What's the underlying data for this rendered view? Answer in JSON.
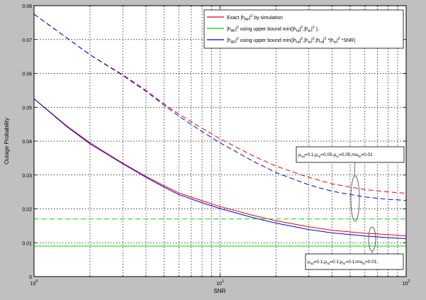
{
  "chart_data": {
    "type": "line",
    "xscale": "log",
    "xlim": [
      1,
      100
    ],
    "ylim": [
      0,
      0.08
    ],
    "xlabel": "SNR",
    "ylabel": "Outage Probability",
    "grid": true,
    "legend_position": "top-right",
    "xticks": [
      {
        "value": 1,
        "base": "10",
        "exp": "0"
      },
      {
        "value": 10,
        "base": "10",
        "exp": "1"
      },
      {
        "value": 100,
        "base": "10",
        "exp": "2"
      }
    ],
    "yticks": [
      {
        "value": 0,
        "label": "0"
      },
      {
        "value": 0.01,
        "label": "0.01"
      },
      {
        "value": 0.02,
        "label": "0.02"
      },
      {
        "value": 0.03,
        "label": "0.03"
      },
      {
        "value": 0.04,
        "label": "0.04"
      },
      {
        "value": 0.05,
        "label": "0.05"
      },
      {
        "value": 0.06,
        "label": "0.06"
      },
      {
        "value": 0.07,
        "label": "0.07"
      },
      {
        "value": 0.08,
        "label": "0.08"
      }
    ],
    "legend": [
      {
        "color": "#ee0000",
        "segs": [
          [
            "Exact |h",
            "n"
          ],
          [
            "AF",
            "sub"
          ],
          [
            "|",
            "n"
          ],
          [
            "2",
            "sup"
          ],
          [
            " by simulation",
            "n"
          ]
        ]
      },
      {
        "color": "#00dd00",
        "segs": [
          [
            "|h",
            "n"
          ],
          [
            "AF",
            "sub"
          ],
          [
            "|",
            "n"
          ],
          [
            "2",
            "sup"
          ],
          [
            " using upper bound min(|h",
            "n"
          ],
          [
            "rd",
            "sub"
          ],
          [
            "|",
            "n"
          ],
          [
            "2",
            "sup"
          ],
          [
            ",|h",
            "n"
          ],
          [
            "sr",
            "sub"
          ],
          [
            "|",
            "n"
          ],
          [
            "2",
            "sup"
          ],
          [
            " ),",
            "n"
          ]
        ]
      },
      {
        "color": "#0000ee",
        "segs": [
          [
            "|h",
            "n"
          ],
          [
            "AF",
            "sub"
          ],
          [
            "|",
            "n"
          ],
          [
            "2",
            "sup"
          ],
          [
            " using upper bound min(|h",
            "n"
          ],
          [
            "rd",
            "sub"
          ],
          [
            "|",
            "n"
          ],
          [
            "2",
            "sup"
          ],
          [
            ",|h",
            "n"
          ],
          [
            "sr",
            "sub"
          ],
          [
            "|",
            "n"
          ],
          [
            "2",
            "sup"
          ],
          [
            ",|h",
            "n"
          ],
          [
            "rd",
            "sub"
          ],
          [
            "|",
            "n"
          ],
          [
            "2",
            "sup"
          ],
          [
            " *|h",
            "n"
          ],
          [
            "sr",
            "sub"
          ],
          [
            "|",
            "n"
          ],
          [
            "2",
            "sup"
          ],
          [
            " *SNR)",
            "n"
          ]
        ]
      }
    ],
    "annotations": [
      {
        "segs": [
          [
            "μ",
            "n"
          ],
          [
            "sd",
            "sub"
          ],
          [
            "=0.1;μ",
            "n"
          ],
          [
            "rd",
            "sub"
          ],
          [
            "=0.05;μ",
            "n"
          ],
          [
            "sr",
            "sub"
          ],
          [
            "=0.05;mu",
            "n"
          ],
          [
            "th",
            "sub"
          ],
          [
            "=0.01",
            "n"
          ]
        ]
      },
      {
        "segs": [
          [
            "μ",
            "n"
          ],
          [
            "sd",
            "sub"
          ],
          [
            "=0.1;μ",
            "n"
          ],
          [
            "rd",
            "sub"
          ],
          [
            "=0.1;μ",
            "n"
          ],
          [
            "sr",
            "sub"
          ],
          [
            "=0.1;mu",
            "n"
          ],
          [
            "th",
            "sub"
          ],
          [
            "=0.01;",
            "n"
          ]
        ]
      }
    ],
    "series": [
      {
        "group": "upper",
        "style": "dashed",
        "color": "#ee0000",
        "x": [
          1,
          2,
          3,
          4,
          5,
          6,
          8,
          10,
          15,
          20,
          30,
          40,
          60,
          80,
          100
        ],
        "y": [
          0.0775,
          0.0655,
          0.0596,
          0.055,
          0.051,
          0.048,
          0.0438,
          0.0407,
          0.0357,
          0.0326,
          0.0293,
          0.0274,
          0.0257,
          0.025,
          0.0246
        ]
      },
      {
        "group": "upper",
        "style": "dashed",
        "color": "#0000ee",
        "x": [
          1,
          2,
          3,
          4,
          5,
          6,
          8,
          10,
          15,
          20,
          30,
          40,
          60,
          80,
          100
        ],
        "y": [
          0.0775,
          0.0655,
          0.0594,
          0.0547,
          0.0506,
          0.0474,
          0.0428,
          0.0395,
          0.0341,
          0.0307,
          0.0271,
          0.0252,
          0.0235,
          0.0228,
          0.0225
        ]
      },
      {
        "group": "lower",
        "style": "solid",
        "color": "#ee0000",
        "x": [
          1,
          1.5,
          2,
          3,
          4,
          5,
          6,
          8,
          10,
          15,
          20,
          30,
          40,
          60,
          80,
          100
        ],
        "y": [
          0.0525,
          0.0445,
          0.0395,
          0.0335,
          0.0296,
          0.0268,
          0.0247,
          0.0224,
          0.0207,
          0.0181,
          0.0165,
          0.0147,
          0.0137,
          0.0128,
          0.0124,
          0.012
        ]
      },
      {
        "group": "lower",
        "style": "solid",
        "color": "#0000ee",
        "x": [
          1,
          1.5,
          2,
          3,
          4,
          5,
          6,
          8,
          10,
          15,
          20,
          30,
          40,
          60,
          80,
          100
        ],
        "y": [
          0.0525,
          0.0443,
          0.0392,
          0.0333,
          0.0293,
          0.0264,
          0.0242,
          0.0218,
          0.0201,
          0.0174,
          0.0158,
          0.0139,
          0.0129,
          0.012,
          0.0115,
          0.0112
        ]
      },
      {
        "group": "upper",
        "style": "dashed",
        "color": "#00dd00",
        "x": [
          1,
          100
        ],
        "y": [
          0.017,
          0.017
        ]
      },
      {
        "group": "lower",
        "style": "solid",
        "color": "#00dd00",
        "x": [
          1,
          100
        ],
        "y": [
          0.009,
          0.009
        ]
      }
    ]
  }
}
